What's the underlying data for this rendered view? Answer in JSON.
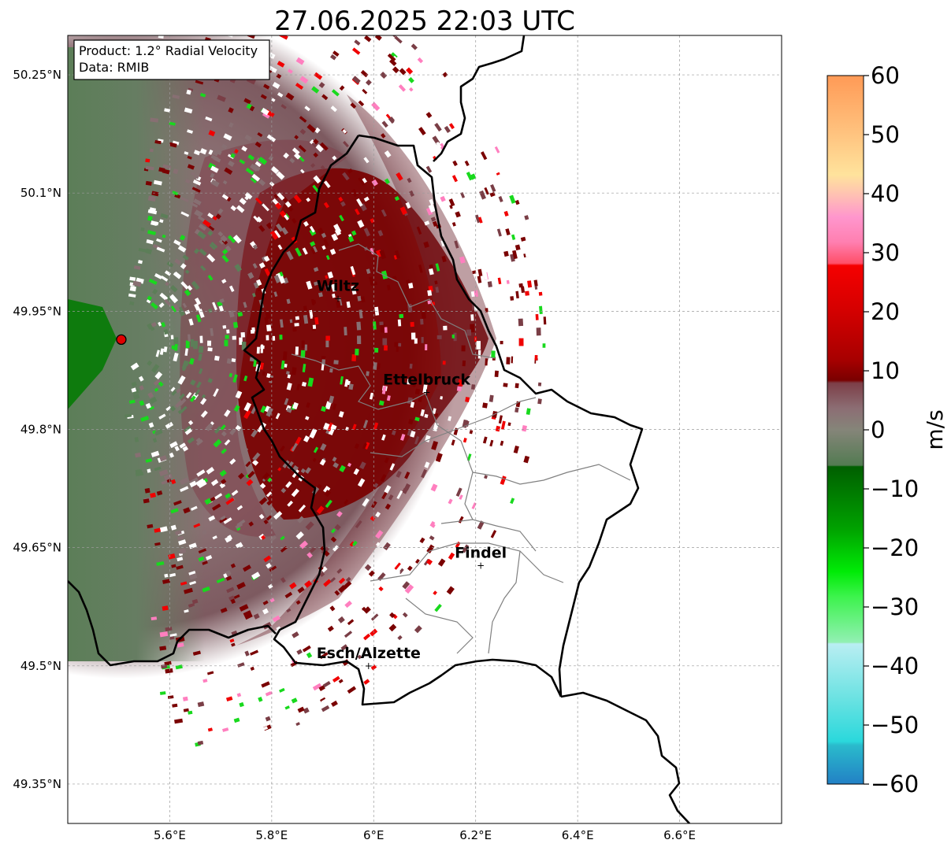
{
  "title": "27.06.2025 22:03 UTC",
  "info_box": {
    "product": "Product: 1.2° Radial Velocity",
    "data": "Data: RMIB"
  },
  "map": {
    "lon_range": [
      5.4,
      6.8
    ],
    "lat_range": [
      49.3,
      50.3
    ],
    "lon_ticks": [
      "5.6°E",
      "5.8°E",
      "6°E",
      "6.2°E",
      "6.4°E",
      "6.6°E"
    ],
    "lat_ticks": [
      "50.25°N",
      "50.1°N",
      "49.95°N",
      "49.8°N",
      "49.65°N",
      "49.5°N",
      "49.35°N"
    ],
    "grid": true,
    "radar_site": {
      "lon": 5.505,
      "lat": 49.914
    },
    "cities": [
      {
        "name": "Wiltz",
        "lon": 5.93,
        "lat": 49.966
      },
      {
        "name": "Ettelbruck",
        "lon": 6.104,
        "lat": 49.847
      },
      {
        "name": "Findel",
        "lon": 6.21,
        "lat": 49.627
      },
      {
        "name": "Esch/Alzette",
        "lon": 5.99,
        "lat": 49.5
      }
    ]
  },
  "colorbar": {
    "label": "m/s",
    "min": -60,
    "max": 60,
    "ticks": [
      "60",
      "50",
      "40",
      "30",
      "20",
      "10",
      "0",
      "−10",
      "−20",
      "−30",
      "−40",
      "−50",
      "−60"
    ],
    "colors": {
      "blue": "#2585c7",
      "cyan": "#33dede",
      "lightcyan": "#b7ecf0",
      "lightgreen": "#85f59e",
      "green": "#18d91d",
      "darkgreen": "#006300",
      "greygreen": "#5c7e58",
      "grey": "#876f72",
      "mauve": "#7a3e46",
      "maroon": "#7a0000",
      "red": "#f00000",
      "pink": "#ff7fbf",
      "peach": "#ffd5a0",
      "orange": "#ff9a56"
    }
  }
}
